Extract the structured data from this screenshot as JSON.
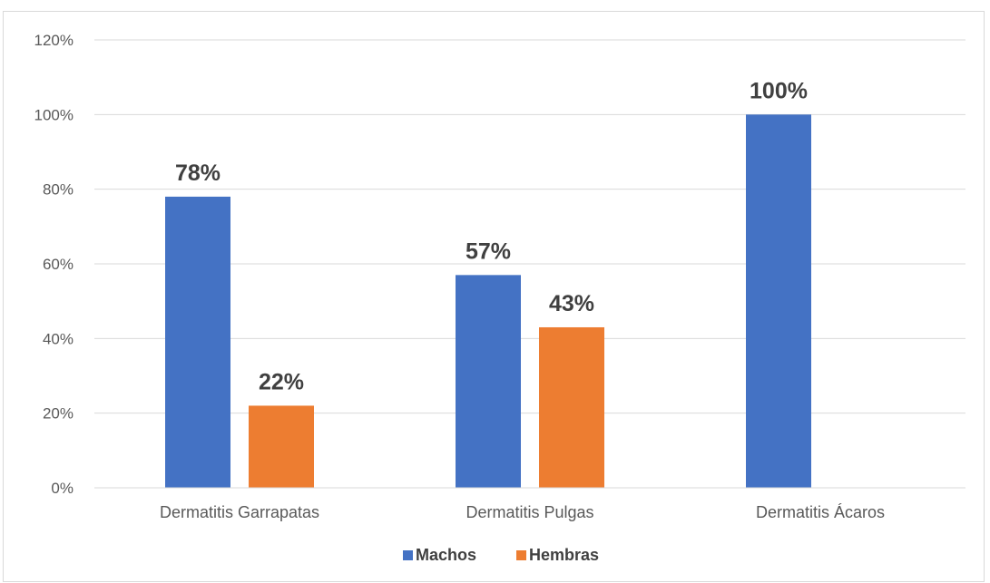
{
  "chart_data": {
    "type": "bar",
    "categories": [
      "Dermatitis Garrapatas",
      "Dermatitis Pulgas",
      "Dermatitis Ácaros"
    ],
    "series": [
      {
        "name": "Machos",
        "values": [
          78,
          57,
          100
        ],
        "color": "#4472c4",
        "labels": [
          "78%",
          "57%",
          "100%"
        ]
      },
      {
        "name": "Hembras",
        "values": [
          22,
          43,
          0
        ],
        "color": "#ed7d31",
        "labels": [
          "22%",
          "43%",
          ""
        ]
      }
    ],
    "yticks": [
      "0%",
      "20%",
      "40%",
      "60%",
      "80%",
      "100%",
      "120%"
    ],
    "ylim": [
      0,
      120
    ],
    "grid": true,
    "legend_position": "bottom",
    "title": "",
    "xlabel": "",
    "ylabel": ""
  }
}
